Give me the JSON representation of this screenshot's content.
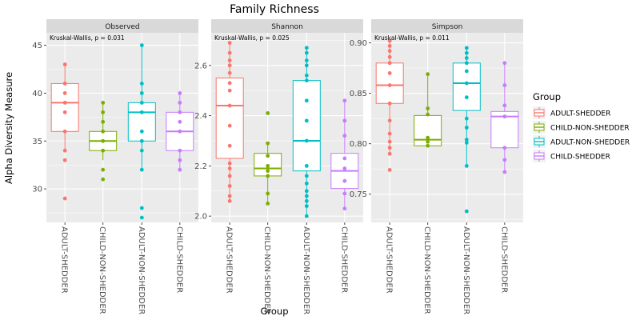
{
  "chart_data": {
    "type": "box",
    "title": "Family Richness",
    "xlabel": "Group",
    "ylabel": "Alpha Diversity Measure",
    "categories": [
      "ADULT-SHEDDER",
      "CHILD-NON-SHEDDER",
      "ADULT-NON-SHEDDER",
      "CHILD-SHEDDER"
    ],
    "colors": [
      "#F8766D",
      "#7CAE00",
      "#00BFC4",
      "#C77CFF"
    ],
    "legend": {
      "title": "Group",
      "position": "right",
      "entries": [
        "ADULT-SHEDDER",
        "CHILD-NON-SHEDDER",
        "ADULT-NON-SHEDDER",
        "CHILD-SHEDDER"
      ]
    },
    "grid": true,
    "panels": [
      {
        "strip": "Observed",
        "annotation": "Kruskal-Wallis, p = 0.031",
        "ylim": [
          26.5,
          46.3
        ],
        "yticks": [
          30,
          35,
          40,
          45
        ],
        "yticklabels": [
          "30",
          "35",
          "40",
          "45"
        ],
        "boxes": [
          {
            "q1": 36,
            "median": 39,
            "q3": 41,
            "whisker_low": 34,
            "whisker_high": 43,
            "points": [
              29,
              33,
              34,
              36,
              38,
              39,
              40,
              41,
              43
            ]
          },
          {
            "q1": 34,
            "median": 35,
            "q3": 36,
            "whisker_low": 33,
            "whisker_high": 39,
            "points": [
              31,
              32,
              34,
              35,
              36,
              37,
              38,
              39
            ]
          },
          {
            "q1": 35,
            "median": 38,
            "q3": 39,
            "whisker_low": 32,
            "whisker_high": 45,
            "points": [
              27,
              28,
              32,
              34,
              35,
              36,
              38,
              39,
              40,
              41,
              45
            ]
          },
          {
            "q1": 34,
            "median": 36,
            "q3": 38,
            "whisker_low": 32,
            "whisker_high": 40,
            "points": [
              32,
              33,
              34,
              36,
              37,
              38,
              39,
              40
            ]
          }
        ]
      },
      {
        "strip": "Shannon",
        "annotation": "Kruskal-Wallis, p = 0.025",
        "ylim": [
          1.975,
          2.73
        ],
        "yticks": [
          2.0,
          2.2,
          2.4,
          2.6
        ],
        "yticklabels": [
          "2.0",
          "2.2",
          "2.4",
          "2.6"
        ],
        "boxes": [
          {
            "q1": 2.23,
            "median": 2.44,
            "q3": 2.55,
            "whisker_low": 2.06,
            "whisker_high": 2.69,
            "points": [
              2.06,
              2.08,
              2.12,
              2.16,
              2.19,
              2.21,
              2.28,
              2.36,
              2.44,
              2.5,
              2.53,
              2.57,
              2.6,
              2.62,
              2.65,
              2.69
            ]
          },
          {
            "q1": 2.16,
            "median": 2.19,
            "q3": 2.25,
            "whisker_low": 2.05,
            "whisker_high": 2.29,
            "points": [
              2.05,
              2.09,
              2.16,
              2.18,
              2.2,
              2.24,
              2.29,
              2.41
            ]
          },
          {
            "q1": 2.18,
            "median": 2.3,
            "q3": 2.54,
            "whisker_low": 2.0,
            "whisker_high": 2.67,
            "points": [
              2.0,
              2.04,
              2.06,
              2.08,
              2.1,
              2.13,
              2.16,
              2.2,
              2.3,
              2.38,
              2.46,
              2.54,
              2.56,
              2.6,
              2.62,
              2.65,
              2.67
            ]
          },
          {
            "q1": 2.11,
            "median": 2.18,
            "q3": 2.25,
            "whisker_low": 2.03,
            "whisker_high": 2.46,
            "points": [
              2.03,
              2.09,
              2.14,
              2.19,
              2.23,
              2.32,
              2.38,
              2.46
            ]
          }
        ]
      },
      {
        "strip": "Simpson",
        "annotation": "Kruskal-Wallis, p = 0.011",
        "ylim": [
          0.722,
          0.91
        ],
        "yticks": [
          0.75,
          0.8,
          0.85,
          0.9
        ],
        "yticklabels": [
          "0.75",
          "0.80",
          "0.85",
          "0.90"
        ],
        "boxes": [
          {
            "q1": 0.84,
            "median": 0.858,
            "q3": 0.88,
            "whisker_low": 0.79,
            "whisker_high": 0.902,
            "points": [
              0.774,
              0.79,
              0.796,
              0.802,
              0.81,
              0.823,
              0.84,
              0.858,
              0.87,
              0.88,
              0.886,
              0.892,
              0.897,
              0.902
            ]
          },
          {
            "q1": 0.798,
            "median": 0.804,
            "q3": 0.828,
            "whisker_low": 0.798,
            "whisker_high": 0.869,
            "points": [
              0.798,
              0.802,
              0.806,
              0.829,
              0.835,
              0.869
            ]
          },
          {
            "q1": 0.833,
            "median": 0.86,
            "q3": 0.88,
            "whisker_low": 0.778,
            "whisker_high": 0.895,
            "points": [
              0.733,
              0.778,
              0.801,
              0.804,
              0.816,
              0.825,
              0.846,
              0.86,
              0.872,
              0.88,
              0.885,
              0.89,
              0.895
            ]
          },
          {
            "q1": 0.796,
            "median": 0.827,
            "q3": 0.832,
            "whisker_low": 0.772,
            "whisker_high": 0.88,
            "points": [
              0.772,
              0.784,
              0.796,
              0.827,
              0.838,
              0.858,
              0.88
            ]
          }
        ]
      }
    ]
  }
}
